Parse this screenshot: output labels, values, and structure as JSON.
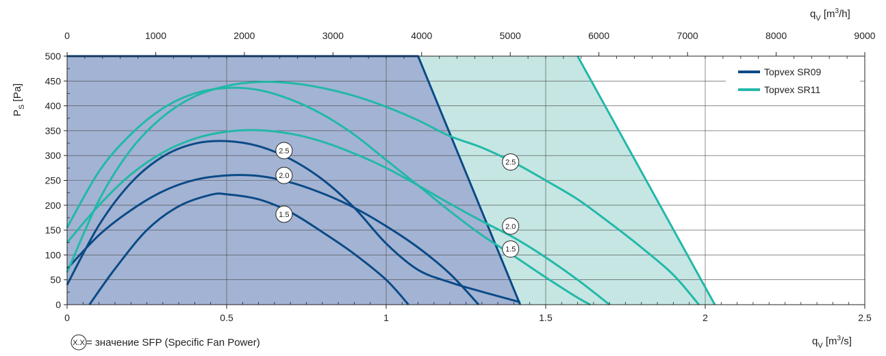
{
  "chart_data": {
    "type": "line",
    "xlabel_bottom": "q",
    "xlabel_bottom_sub": "V",
    "xlabel_bottom_unit_pre": " [m",
    "xlabel_bottom_unit_sup": "3",
    "xlabel_bottom_unit_post": "/s]",
    "xlabel_top": "q",
    "xlabel_top_sub": "V",
    "xlabel_top_unit_pre": " [m",
    "xlabel_top_unit_sup": "3",
    "xlabel_top_unit_post": "/h]",
    "ylabel": "P",
    "ylabel_sub": "S",
    "ylabel_unit": " [Pa]",
    "xlim": [
      0,
      2.5
    ],
    "xlim_top": [
      0,
      9000
    ],
    "ylim": [
      0,
      500
    ],
    "x_ticks": [
      "0",
      "0.5",
      "1",
      "1.5",
      "2",
      "2.5"
    ],
    "x_ticks_values": [
      0,
      0.5,
      1,
      1.5,
      2,
      2.5
    ],
    "x_top_ticks": [
      "0",
      "1000",
      "2000",
      "3000",
      "4000",
      "5000",
      "6000",
      "7000",
      "8000",
      "9000"
    ],
    "x_top_ticks_values": [
      0,
      1000,
      2000,
      3000,
      4000,
      5000,
      6000,
      7000,
      8000,
      9000
    ],
    "y_ticks": [
      "0",
      "50",
      "100",
      "150",
      "200",
      "250",
      "300",
      "350",
      "400",
      "450",
      "500"
    ],
    "y_ticks_values": [
      0,
      50,
      100,
      150,
      200,
      250,
      300,
      350,
      400,
      450,
      500
    ],
    "grid": true,
    "legend_position": "top-right",
    "legend": [
      {
        "label": "Topvex SR09",
        "color": "#0a4a86"
      },
      {
        "label": "Topvex SR11",
        "color": "#22b8a8"
      }
    ],
    "regions": [
      {
        "series": "Topvex SR11",
        "fill": "#c5e6e3",
        "points": [
          [
            0,
            0
          ],
          [
            0,
            500
          ],
          [
            1.6,
            500
          ],
          [
            2.03,
            0
          ]
        ]
      },
      {
        "series": "Topvex SR09",
        "fill": "#a3b3d3",
        "points": [
          [
            0,
            0
          ],
          [
            0,
            500
          ],
          [
            1.1,
            500
          ],
          [
            1.42,
            0
          ]
        ]
      }
    ],
    "series": [
      {
        "name": "Topvex SR09",
        "color": "#0a4a86",
        "points": [
          [
            0,
            500
          ],
          [
            1.1,
            500
          ],
          [
            1.42,
            0
          ]
        ]
      },
      {
        "name": "Topvex SR11",
        "color": "#22b8a8",
        "points": [
          [
            1.6,
            500
          ],
          [
            2.03,
            0
          ]
        ]
      },
      {
        "name": "Topvex SR09",
        "sfp": "2.5",
        "color": "#0a4a86",
        "points": [
          [
            0,
            40
          ],
          [
            0.1,
            160
          ],
          [
            0.2,
            245
          ],
          [
            0.3,
            298
          ],
          [
            0.4,
            324
          ],
          [
            0.5,
            329
          ],
          [
            0.6,
            319
          ],
          [
            0.7,
            293
          ],
          [
            0.8,
            252
          ],
          [
            0.9,
            195
          ],
          [
            1.0,
            123
          ],
          [
            1.1,
            70
          ],
          [
            1.2,
            45
          ],
          [
            1.3,
            26
          ],
          [
            1.42,
            5
          ]
        ]
      },
      {
        "name": "Topvex SR09",
        "sfp": "2.0",
        "color": "#0a4a86",
        "points": [
          [
            0,
            72
          ],
          [
            0.1,
            140
          ],
          [
            0.2,
            190
          ],
          [
            0.3,
            228
          ],
          [
            0.4,
            251
          ],
          [
            0.5,
            260
          ],
          [
            0.6,
            259
          ],
          [
            0.7,
            246
          ],
          [
            0.8,
            224
          ],
          [
            0.9,
            195
          ],
          [
            1.0,
            158
          ],
          [
            1.1,
            115
          ],
          [
            1.2,
            62
          ],
          [
            1.29,
            0
          ]
        ]
      },
      {
        "name": "Topvex SR09",
        "sfp": "1.5",
        "color": "#0a4a86",
        "points": [
          [
            0.07,
            0
          ],
          [
            0.15,
            72
          ],
          [
            0.25,
            150
          ],
          [
            0.35,
            198
          ],
          [
            0.45,
            221
          ],
          [
            0.5,
            222
          ],
          [
            0.6,
            212
          ],
          [
            0.7,
            186
          ],
          [
            0.8,
            146
          ],
          [
            0.9,
            102
          ],
          [
            1.0,
            50
          ],
          [
            1.07,
            0
          ]
        ]
      },
      {
        "name": "Topvex SR11",
        "sfp": "2.5",
        "color": "#22b8a8",
        "points": [
          [
            0,
            65
          ],
          [
            0.1,
            210
          ],
          [
            0.2,
            312
          ],
          [
            0.3,
            378
          ],
          [
            0.4,
            419
          ],
          [
            0.5,
            440
          ],
          [
            0.6,
            448
          ],
          [
            0.7,
            446
          ],
          [
            0.8,
            436
          ],
          [
            0.9,
            420
          ],
          [
            1.0,
            398
          ],
          [
            1.1,
            371
          ],
          [
            1.2,
            339
          ],
          [
            1.3,
            316
          ],
          [
            1.4,
            286
          ],
          [
            1.5,
            250
          ],
          [
            1.6,
            212
          ],
          [
            1.7,
            165
          ],
          [
            1.8,
            115
          ],
          [
            1.9,
            60
          ],
          [
            1.98,
            0
          ]
        ]
      },
      {
        "name": "Topvex SR11",
        "sfp": "2.0",
        "color": "#22b8a8",
        "points": [
          [
            0,
            125
          ],
          [
            0.1,
            200
          ],
          [
            0.2,
            262
          ],
          [
            0.3,
            306
          ],
          [
            0.4,
            334
          ],
          [
            0.5,
            348
          ],
          [
            0.6,
            351
          ],
          [
            0.7,
            344
          ],
          [
            0.8,
            328
          ],
          [
            0.9,
            304
          ],
          [
            1.0,
            275
          ],
          [
            1.1,
            240
          ],
          [
            1.2,
            203
          ],
          [
            1.3,
            168
          ],
          [
            1.4,
            135
          ],
          [
            1.5,
            95
          ],
          [
            1.6,
            50
          ],
          [
            1.7,
            0
          ]
        ]
      },
      {
        "name": "Topvex SR11",
        "sfp": "1.5",
        "color": "#22b8a8",
        "points": [
          [
            0,
            155
          ],
          [
            0.1,
            268
          ],
          [
            0.2,
            343
          ],
          [
            0.3,
            395
          ],
          [
            0.4,
            425
          ],
          [
            0.5,
            436
          ],
          [
            0.6,
            432
          ],
          [
            0.7,
            413
          ],
          [
            0.8,
            383
          ],
          [
            0.9,
            342
          ],
          [
            1.0,
            291
          ],
          [
            1.1,
            240
          ],
          [
            1.2,
            188
          ],
          [
            1.3,
            140
          ],
          [
            1.4,
            98
          ],
          [
            1.5,
            55
          ],
          [
            1.6,
            14
          ],
          [
            1.64,
            0
          ]
        ]
      }
    ],
    "sfp_labels": [
      {
        "text": "2.5",
        "x": 0.68,
        "y": 310
      },
      {
        "text": "2.0",
        "x": 0.68,
        "y": 260
      },
      {
        "text": "1.5",
        "x": 0.68,
        "y": 182
      },
      {
        "text": "2.5",
        "x": 1.39,
        "y": 287
      },
      {
        "text": "2.0",
        "x": 1.39,
        "y": 158
      },
      {
        "text": "1.5",
        "x": 1.39,
        "y": 112
      }
    ],
    "note_symbol": "X.X",
    "note_text": " = значение SFP (Specific Fan Power)"
  }
}
